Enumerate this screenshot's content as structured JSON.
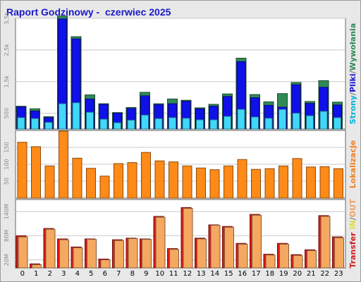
{
  "title": "Raport Godzinowy -  czerwiec 2025",
  "chart_data": {
    "type": "bar",
    "categories": [
      "0",
      "1",
      "2",
      "3",
      "4",
      "5",
      "6",
      "7",
      "8",
      "9",
      "10",
      "11",
      "12",
      "13",
      "14",
      "15",
      "16",
      "17",
      "18",
      "19",
      "20",
      "21",
      "22",
      "23"
    ],
    "panels": [
      {
        "id": "hits",
        "ylim": [
          0,
          3500
        ],
        "ticks": [
          {
            "v": 500,
            "label": "500"
          },
          {
            "v": 1500,
            "label": "1,5k"
          },
          {
            "v": 2500,
            "label": "2,5k"
          },
          {
            "v": 3500,
            "label": "3,5k"
          }
        ],
        "side_label": [
          {
            "text": "Strony",
            "color": "#00b4d8"
          },
          {
            "text": "/",
            "color": "#777777"
          },
          {
            "text": "Pliki",
            "color": "#1a1ad0"
          },
          {
            "text": "/",
            "color": "#777777"
          },
          {
            "text": "Wywołania",
            "color": "#2f8a55"
          }
        ],
        "series": [
          {
            "name": "Wywołania",
            "color": "#2f8a55",
            "values": [
              720,
              640,
              390,
              3570,
              2920,
              1080,
              800,
              520,
              680,
              1160,
              800,
              950,
              910,
              670,
              780,
              1110,
              2240,
              1090,
              860,
              1120,
              1470,
              870,
              1530,
              850
            ]
          },
          {
            "name": "Pliki",
            "color": "#1010e8",
            "values": [
              700,
              570,
              360,
              3480,
              2850,
              950,
              780,
              500,
              650,
              1050,
              770,
              800,
              880,
              640,
              720,
              1030,
              2130,
              990,
              750,
              690,
              1400,
              810,
              1320,
              760
            ]
          },
          {
            "name": "Strony",
            "color": "#40d8f8",
            "values": [
              360,
              330,
              210,
              800,
              830,
              530,
              310,
              200,
              280,
              440,
              330,
              360,
              340,
              290,
              290,
              400,
              620,
              380,
              340,
              620,
              500,
              420,
              560,
              360
            ]
          }
        ]
      },
      {
        "id": "visits",
        "ylim": [
          0,
          200
        ],
        "ticks": [
          {
            "v": 50,
            "label": "50"
          },
          {
            "v": 100,
            "label": "100"
          },
          {
            "v": 150,
            "label": "150"
          }
        ],
        "side_label": [
          {
            "text": "Lokalizacje",
            "color": "#f08020"
          }
        ],
        "series": [
          {
            "name": "Lokalizacje",
            "color": "#ff8a18",
            "values": [
              165,
              152,
              95,
              198,
              118,
              88,
              65,
              102,
              105,
              135,
              110,
              107,
              95,
              89,
              84,
              95,
              114,
              85,
              87,
              95,
              117,
              92,
              93,
              87
            ]
          }
        ]
      },
      {
        "id": "transfer",
        "ylim": [
          0,
          170
        ],
        "ticks": [
          {
            "v": 20,
            "label": "20M"
          },
          {
            "v": 80,
            "label": "80M"
          },
          {
            "v": 140,
            "label": "140M"
          }
        ],
        "side_label": [
          {
            "text": "Transfer",
            "color": "#cc2020"
          },
          {
            "text": " ",
            "color": "#777777"
          },
          {
            "text": "IN",
            "color": "#dddd40"
          },
          {
            "text": "/",
            "color": "#777777"
          },
          {
            "text": "OUT",
            "color": "#f0a060"
          }
        ],
        "series": [
          {
            "name": "IN",
            "color": "#dd1818",
            "values": [
              80,
              10,
              98,
              72,
              52,
              72,
              22,
              70,
              74,
              72,
              128,
              48,
              150,
              74,
              107,
              103,
              61,
              133,
              34,
              61,
              33,
              45,
              130,
              77
            ]
          },
          {
            "name": "OUT",
            "color": "#f4a860",
            "values": [
              77,
              8,
              96,
              70,
              50,
              71,
              20,
              68,
              73,
              71,
              126,
              46,
              148,
              72,
              106,
              101,
              59,
              131,
              32,
              59,
              31,
              43,
              128,
              75
            ]
          }
        ]
      }
    ]
  }
}
